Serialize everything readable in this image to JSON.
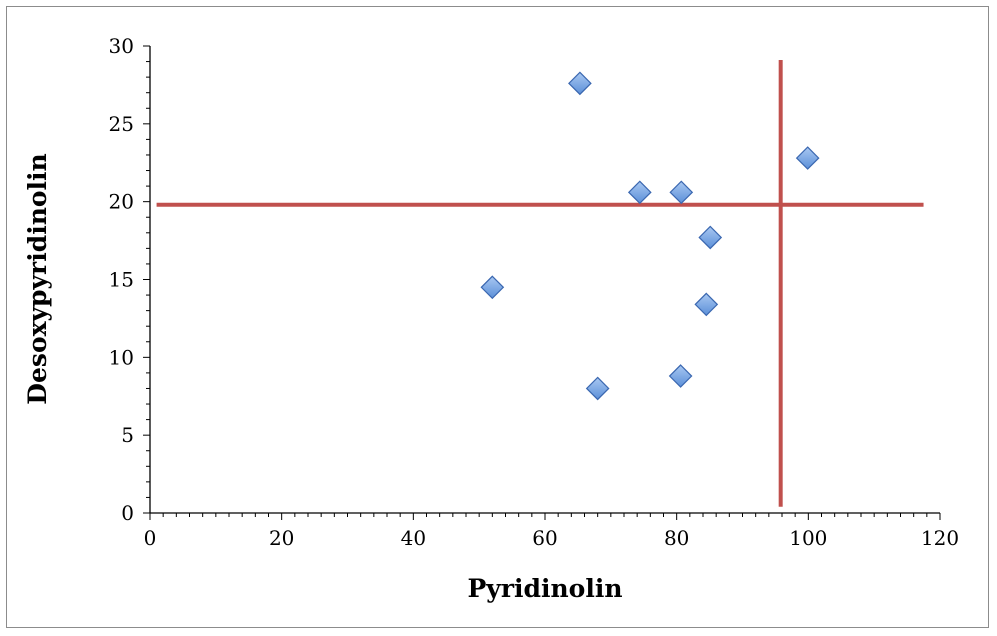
{
  "chart_data": {
    "type": "scatter",
    "title": "",
    "xlabel": "Pyridinolin",
    "ylabel": "Desoxypyridinolin",
    "xlim": [
      0,
      120
    ],
    "ylim": [
      0,
      30
    ],
    "x_ticks": [
      0,
      20,
      40,
      60,
      80,
      100,
      120
    ],
    "y_ticks": [
      0,
      5,
      10,
      15,
      20,
      25,
      30
    ],
    "x_tick_labels": [
      "0",
      "20",
      "40",
      "60",
      "80",
      "100",
      "120"
    ],
    "y_tick_labels": [
      "0",
      "5",
      "10",
      "15",
      "20",
      "25",
      "30"
    ],
    "grid": false,
    "legend": "none",
    "series": [
      {
        "marker": "diamond",
        "color": "#5b8fd8",
        "points": [
          {
            "x": 52,
            "y": 14.5
          },
          {
            "x": 65.3,
            "y": 27.6
          },
          {
            "x": 68,
            "y": 8
          },
          {
            "x": 74.4,
            "y": 20.6
          },
          {
            "x": 80.7,
            "y": 20.6
          },
          {
            "x": 80.6,
            "y": 8.8
          },
          {
            "x": 85.1,
            "y": 17.7
          },
          {
            "x": 84.5,
            "y": 13.4
          },
          {
            "x": 99.9,
            "y": 22.8
          }
        ]
      }
    ],
    "reference_lines": [
      {
        "orientation": "horizontal",
        "y": 19.8,
        "x_from": 1,
        "x_to": 117.5,
        "color": "#c0504d"
      },
      {
        "orientation": "vertical",
        "x": 95.8,
        "y_from": 0.4,
        "y_to": 29.1,
        "color": "#c0504d"
      }
    ]
  }
}
